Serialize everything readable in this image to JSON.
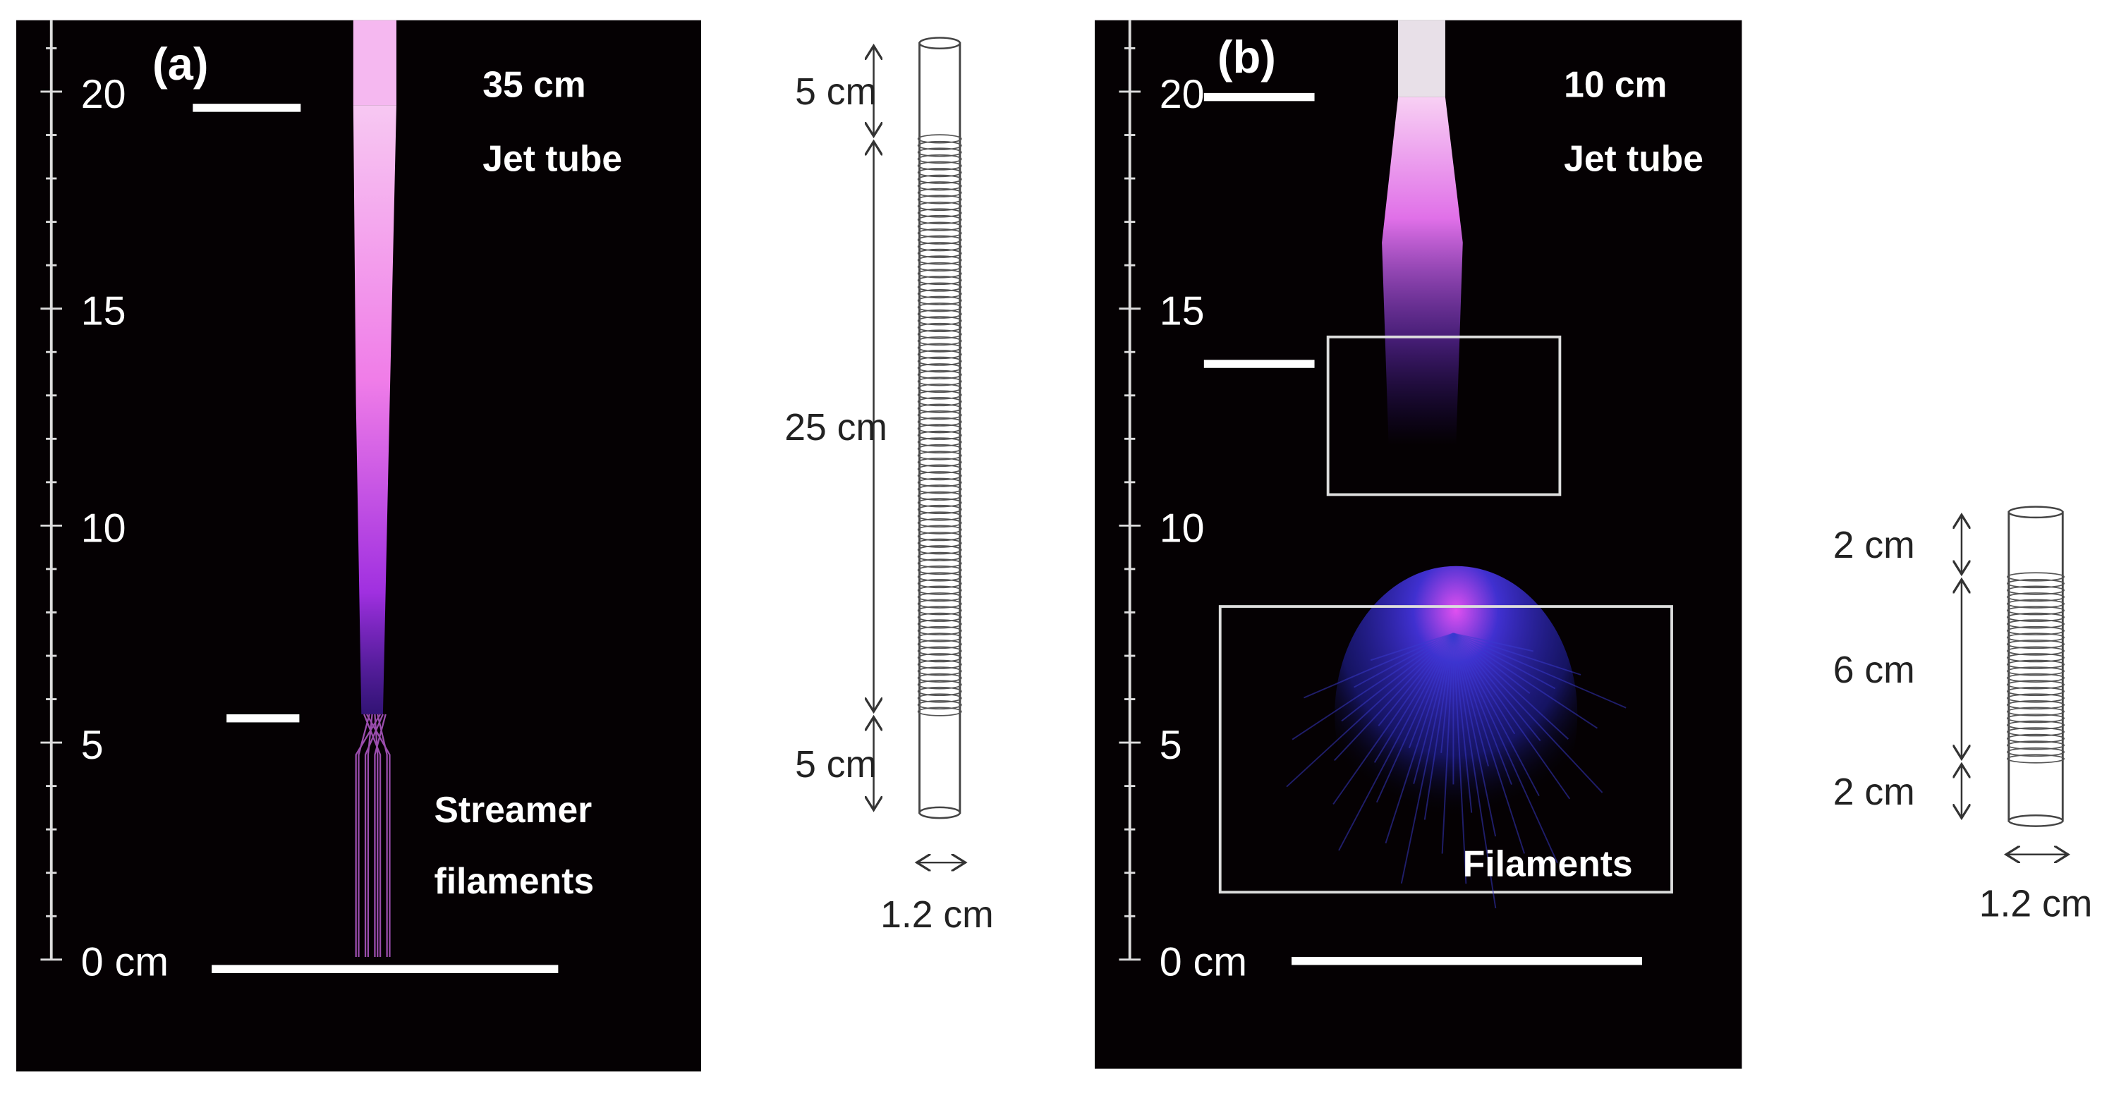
{
  "panels": [
    {
      "label": "(a)",
      "ruler_ticks": [
        "20",
        "15",
        "10",
        "5",
        "0 cm"
      ],
      "jet_length": "35 cm",
      "jet_label": "Jet tube",
      "region_label": [
        "Streamer",
        "filaments"
      ]
    },
    {
      "label": "(b)",
      "ruler_ticks": [
        "20",
        "15",
        "10",
        "5",
        "0 cm"
      ],
      "jet_length": "10 cm",
      "jet_label": "Jet tube",
      "region_label": [
        "Filaments"
      ]
    }
  ],
  "tubes": [
    {
      "segments": [
        "5 cm",
        "25 cm",
        "5 cm"
      ],
      "diameter": "1.2 cm"
    },
    {
      "segments": [
        "2 cm",
        "6 cm",
        "2 cm"
      ],
      "diameter": "1.2 cm"
    }
  ]
}
